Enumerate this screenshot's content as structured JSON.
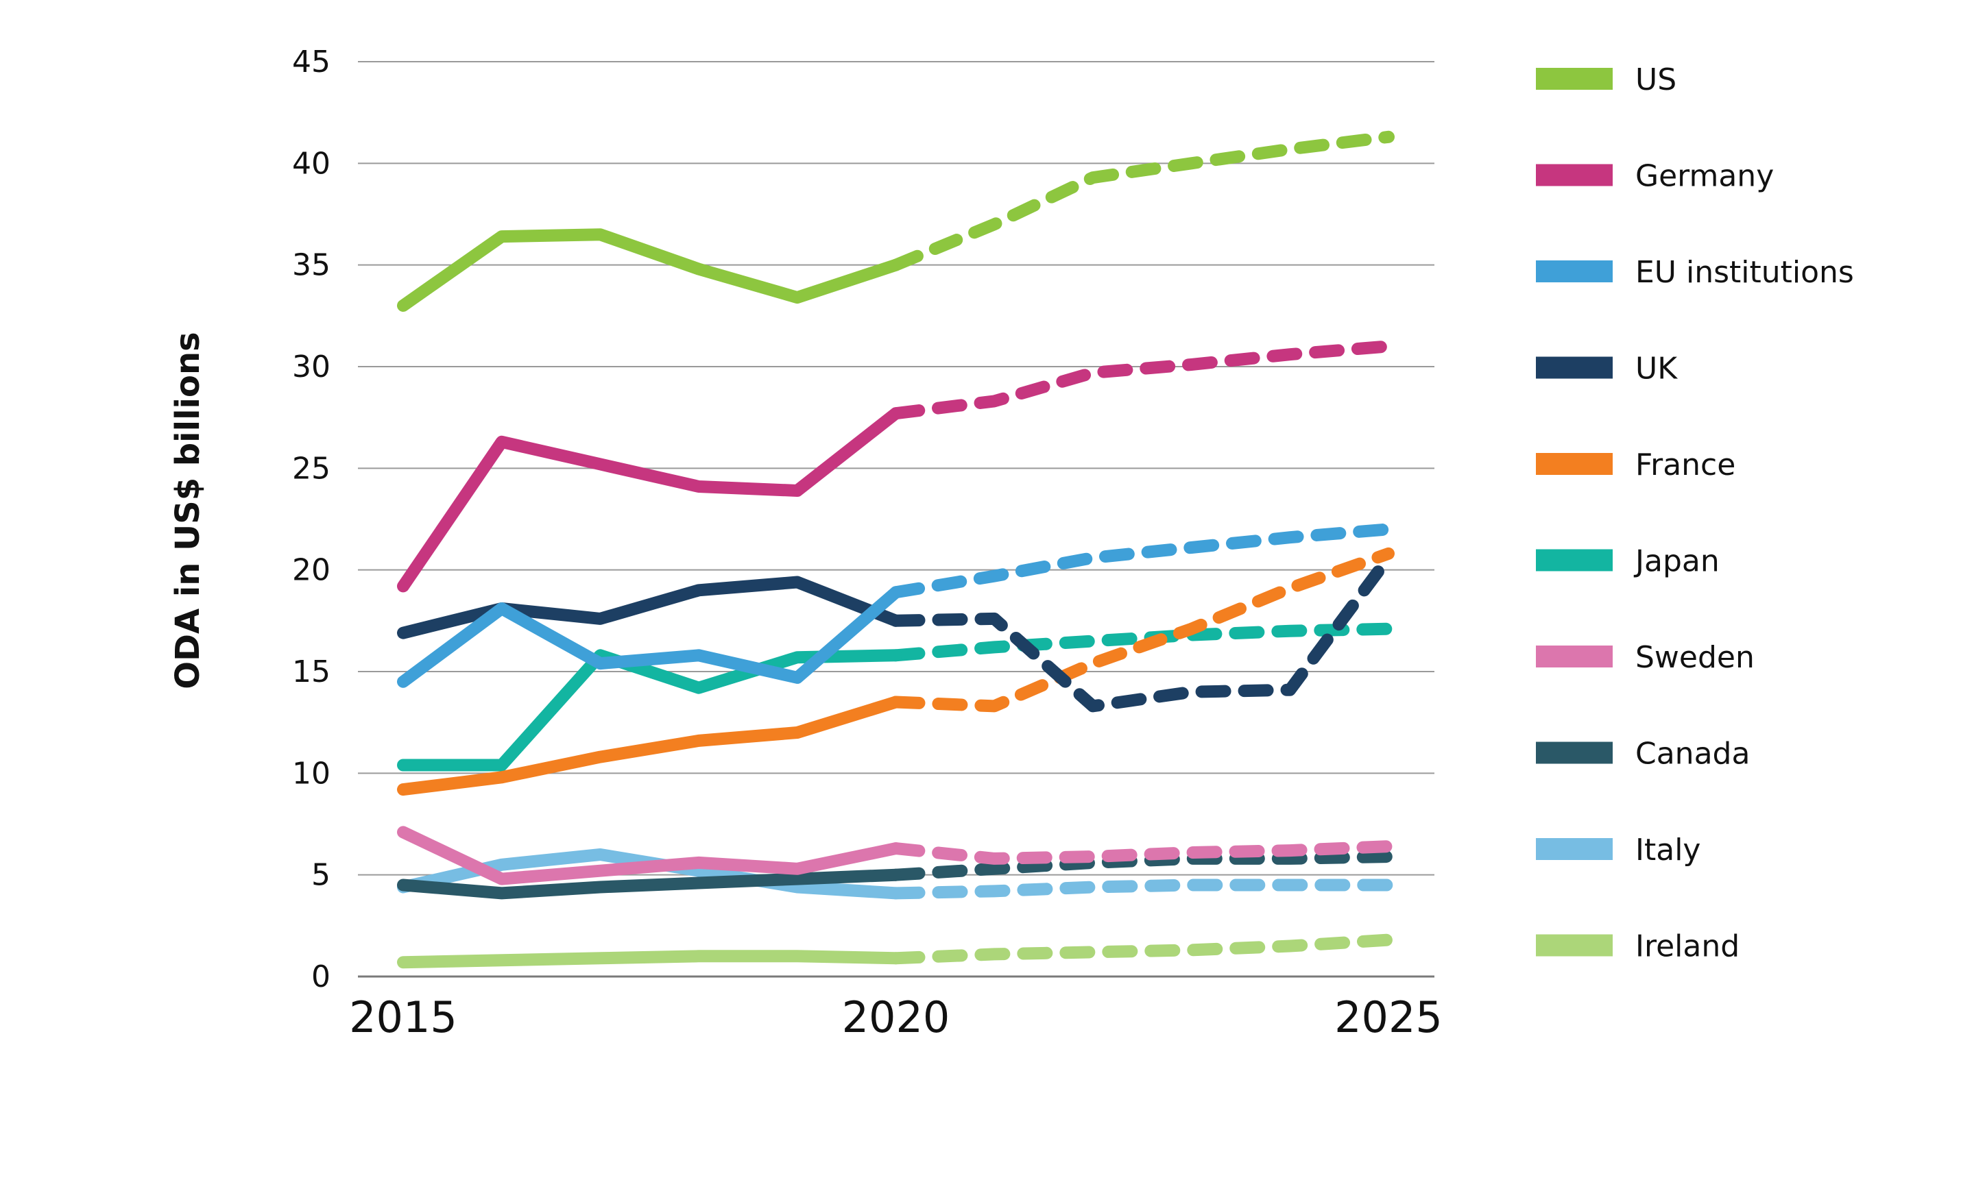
{
  "chart_data": {
    "type": "line",
    "title": "",
    "xlabel": "",
    "ylabel": "ODA in US$ billions",
    "xlim": [
      2015,
      2025
    ],
    "ylim": [
      0,
      45
    ],
    "yticks": [
      "0",
      "5",
      "10",
      "15",
      "20",
      "25",
      "30",
      "35",
      "40",
      "45"
    ],
    "xticks": [
      "2015",
      "2020",
      "2025"
    ],
    "grid": "horizontal",
    "legend_position": "right",
    "line_style_note": "solid through 2020, dashed 2020-2025",
    "series": [
      {
        "name": "US",
        "color": "#8dc63f",
        "solid": [
          [
            2015,
            33.0
          ],
          [
            2016,
            36.4
          ],
          [
            2017,
            36.5
          ],
          [
            2018,
            34.8
          ],
          [
            2019,
            33.4
          ],
          [
            2020,
            35.0
          ]
        ],
        "dashed": [
          [
            2020,
            35.0
          ],
          [
            2021,
            37.0
          ],
          [
            2022,
            39.3
          ],
          [
            2023,
            40.0
          ],
          [
            2024,
            40.7
          ],
          [
            2025,
            41.3
          ]
        ]
      },
      {
        "name": "Germany",
        "color": "#c6367f",
        "solid": [
          [
            2015,
            19.2
          ],
          [
            2016,
            26.3
          ],
          [
            2017,
            25.2
          ],
          [
            2018,
            24.1
          ],
          [
            2019,
            23.9
          ],
          [
            2020,
            27.7
          ]
        ],
        "dashed": [
          [
            2020,
            27.7
          ],
          [
            2021,
            28.3
          ],
          [
            2022,
            29.7
          ],
          [
            2023,
            30.1
          ],
          [
            2024,
            30.6
          ],
          [
            2025,
            31.0
          ]
        ]
      },
      {
        "name": "EU institutions",
        "color": "#3fa0d8",
        "solid": [
          [
            2015,
            14.5
          ],
          [
            2016,
            18.1
          ],
          [
            2017,
            15.4
          ],
          [
            2018,
            15.8
          ],
          [
            2019,
            14.7
          ],
          [
            2020,
            18.9
          ]
        ],
        "dashed": [
          [
            2020,
            18.9
          ],
          [
            2021,
            19.7
          ],
          [
            2022,
            20.6
          ],
          [
            2023,
            21.1
          ],
          [
            2024,
            21.6
          ],
          [
            2025,
            22.0
          ]
        ]
      },
      {
        "name": "UK",
        "color": "#1d3f63",
        "solid": [
          [
            2015,
            16.9
          ],
          [
            2016,
            18.1
          ],
          [
            2017,
            17.6
          ],
          [
            2018,
            19.0
          ],
          [
            2019,
            19.4
          ],
          [
            2020,
            17.5
          ]
        ],
        "dashed": [
          [
            2020,
            17.5
          ],
          [
            2021,
            17.6
          ],
          [
            2022,
            13.3
          ],
          [
            2023,
            14.0
          ],
          [
            2024,
            14.1
          ],
          [
            2025,
            20.6
          ]
        ]
      },
      {
        "name": "France",
        "color": "#f37f20",
        "solid": [
          [
            2015,
            9.2
          ],
          [
            2016,
            9.8
          ],
          [
            2017,
            10.8
          ],
          [
            2018,
            11.6
          ],
          [
            2019,
            12.0
          ],
          [
            2020,
            13.5
          ]
        ],
        "dashed": [
          [
            2020,
            13.5
          ],
          [
            2021,
            13.3
          ],
          [
            2022,
            15.4
          ],
          [
            2023,
            17.1
          ],
          [
            2024,
            19.1
          ],
          [
            2025,
            20.8
          ]
        ]
      },
      {
        "name": "Japan",
        "color": "#13b5a1",
        "solid": [
          [
            2015,
            10.4
          ],
          [
            2016,
            10.4
          ],
          [
            2017,
            15.8
          ],
          [
            2018,
            14.2
          ],
          [
            2019,
            15.7
          ],
          [
            2020,
            15.8
          ]
        ],
        "dashed": [
          [
            2020,
            15.8
          ],
          [
            2021,
            16.2
          ],
          [
            2022,
            16.5
          ],
          [
            2023,
            16.8
          ],
          [
            2024,
            17.0
          ],
          [
            2025,
            17.1
          ]
        ]
      },
      {
        "name": "Sweden",
        "color": "#dc76ad",
        "solid": [
          [
            2015,
            7.1
          ],
          [
            2016,
            4.8
          ],
          [
            2017,
            5.2
          ],
          [
            2018,
            5.6
          ],
          [
            2019,
            5.3
          ],
          [
            2020,
            6.3
          ]
        ],
        "dashed": [
          [
            2020,
            6.3
          ],
          [
            2021,
            5.8
          ],
          [
            2022,
            5.9
          ],
          [
            2023,
            6.1
          ],
          [
            2024,
            6.2
          ],
          [
            2025,
            6.4
          ]
        ]
      },
      {
        "name": "Canada",
        "color": "#2a5867",
        "solid": [
          [
            2015,
            4.5
          ],
          [
            2016,
            4.1
          ],
          [
            2017,
            4.4
          ],
          [
            2018,
            4.6
          ],
          [
            2019,
            4.8
          ],
          [
            2020,
            5.0
          ]
        ],
        "dashed": [
          [
            2020,
            5.0
          ],
          [
            2021,
            5.3
          ],
          [
            2022,
            5.6
          ],
          [
            2023,
            5.8
          ],
          [
            2024,
            5.8
          ],
          [
            2025,
            5.9
          ]
        ]
      },
      {
        "name": "Italy",
        "color": "#77bde3",
        "solid": [
          [
            2015,
            4.4
          ],
          [
            2016,
            5.5
          ],
          [
            2017,
            6.0
          ],
          [
            2018,
            5.2
          ],
          [
            2019,
            4.4
          ],
          [
            2020,
            4.1
          ]
        ],
        "dashed": [
          [
            2020,
            4.1
          ],
          [
            2021,
            4.2
          ],
          [
            2022,
            4.4
          ],
          [
            2023,
            4.5
          ],
          [
            2024,
            4.5
          ],
          [
            2025,
            4.5
          ]
        ]
      },
      {
        "name": "Ireland",
        "color": "#acd679",
        "solid": [
          [
            2015,
            0.7
          ],
          [
            2016,
            0.8
          ],
          [
            2017,
            0.9
          ],
          [
            2018,
            1.0
          ],
          [
            2019,
            1.0
          ],
          [
            2020,
            0.9
          ]
        ],
        "dashed": [
          [
            2020,
            0.9
          ],
          [
            2021,
            1.1
          ],
          [
            2022,
            1.2
          ],
          [
            2023,
            1.3
          ],
          [
            2024,
            1.5
          ],
          [
            2025,
            1.8
          ]
        ]
      }
    ]
  }
}
